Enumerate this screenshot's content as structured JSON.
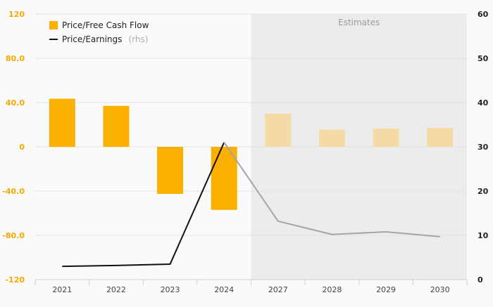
{
  "chart_data": {
    "type": "bar",
    "categories": [
      "2021",
      "2022",
      "2023",
      "2024",
      "2027",
      "2028",
      "2029",
      "2030"
    ],
    "estimates_start_index": 4,
    "estimates_label": "Estimates",
    "series": [
      {
        "name": "Price/Free Cash Flow",
        "type": "bar",
        "axis": "left",
        "values": [
          43.5,
          37.0,
          -42.5,
          -57.0,
          30.0,
          15.5,
          16.5,
          17.0
        ]
      },
      {
        "name": "Price/Earnings",
        "name_suffix": "(rhs)",
        "type": "line",
        "axis": "right",
        "values": [
          3.0,
          3.2,
          3.5,
          31.0,
          13.2,
          10.2,
          10.8,
          9.7
        ]
      }
    ],
    "left_axis": {
      "ylim": [
        -120,
        120
      ],
      "ticks": [
        120,
        80,
        40,
        0,
        -40,
        -80,
        -120
      ],
      "tick_labels": [
        "120",
        "80.0",
        "40.0",
        "0",
        "-40.0",
        "-80.0",
        "-120"
      ]
    },
    "right_axis": {
      "ylim": [
        0,
        60
      ],
      "ticks": [
        60,
        50,
        40,
        30,
        20,
        10,
        0
      ],
      "tick_labels": [
        "60",
        "50",
        "40",
        "30",
        "20",
        "10",
        "0"
      ]
    },
    "colors": {
      "bar_actual": "#f9b000",
      "bar_estimate": "#f4dba6",
      "line_actual": "#111111",
      "line_estimate": "#a5a5a5",
      "estimates_bg": "#ececec",
      "left_tick": "#f5a800"
    },
    "legend_position": "top-left",
    "grid": true
  }
}
